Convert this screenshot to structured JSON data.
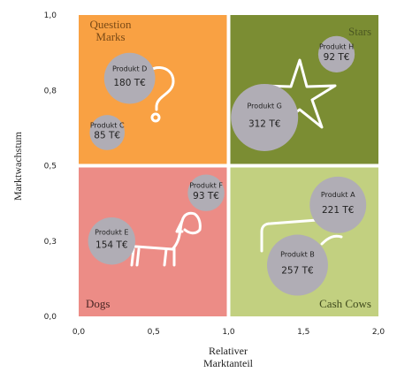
{
  "chart_data": {
    "type": "scatter",
    "xlabel": "Relativer Marktanteil",
    "ylabel": "Marktwachstum",
    "xlim": [
      0,
      2
    ],
    "ylim": [
      0,
      1
    ],
    "x_ticks": [
      "0,0",
      "0,5",
      "1,0",
      "1,5",
      "2,0"
    ],
    "y_ticks": [
      "0,0",
      "0,3",
      "0,5",
      "0,8",
      "1,0"
    ],
    "grid": false,
    "quadrants": [
      {
        "key": "question",
        "label_lines": [
          "Question",
          "Marks"
        ],
        "color": "#f9a143",
        "text_color": "#7a4a16"
      },
      {
        "key": "stars",
        "label_lines": [
          "Stars"
        ],
        "color": "#7b8d33",
        "text_color": "#4b5722"
      },
      {
        "key": "dogs",
        "label_lines": [
          "Dogs"
        ],
        "color": "#ec8c86",
        "text_color": "#4a2624"
      },
      {
        "key": "cows",
        "label_lines": [
          "Cash Cows"
        ],
        "color": "#c2d080",
        "text_color": "#3f4a1c"
      }
    ],
    "bubble_color": "#b0adb5",
    "points": [
      {
        "name": "Produkt A",
        "value_label": "221 T€",
        "value": 221,
        "x": 1.73,
        "y": 0.37
      },
      {
        "name": "Produkt B",
        "value_label": "257 T€",
        "value": 257,
        "x": 1.46,
        "y": 0.17
      },
      {
        "name": "Produkt C",
        "value_label": "85 T€",
        "value": 85,
        "x": 0.19,
        "y": 0.61
      },
      {
        "name": "Produkt D",
        "value_label": "180 T€",
        "value": 180,
        "x": 0.34,
        "y": 0.79
      },
      {
        "name": "Produkt E",
        "value_label": "154 T€",
        "value": 154,
        "x": 0.22,
        "y": 0.25
      },
      {
        "name": "Produkt F",
        "value_label": "93 T€",
        "value": 93,
        "x": 0.85,
        "y": 0.41
      },
      {
        "name": "Produkt G",
        "value_label": "312 T€",
        "value": 312,
        "x": 1.24,
        "y": 0.66
      },
      {
        "name": "Produkt H",
        "value_label": "92 T€",
        "value": 92,
        "x": 1.72,
        "y": 0.87
      }
    ]
  }
}
